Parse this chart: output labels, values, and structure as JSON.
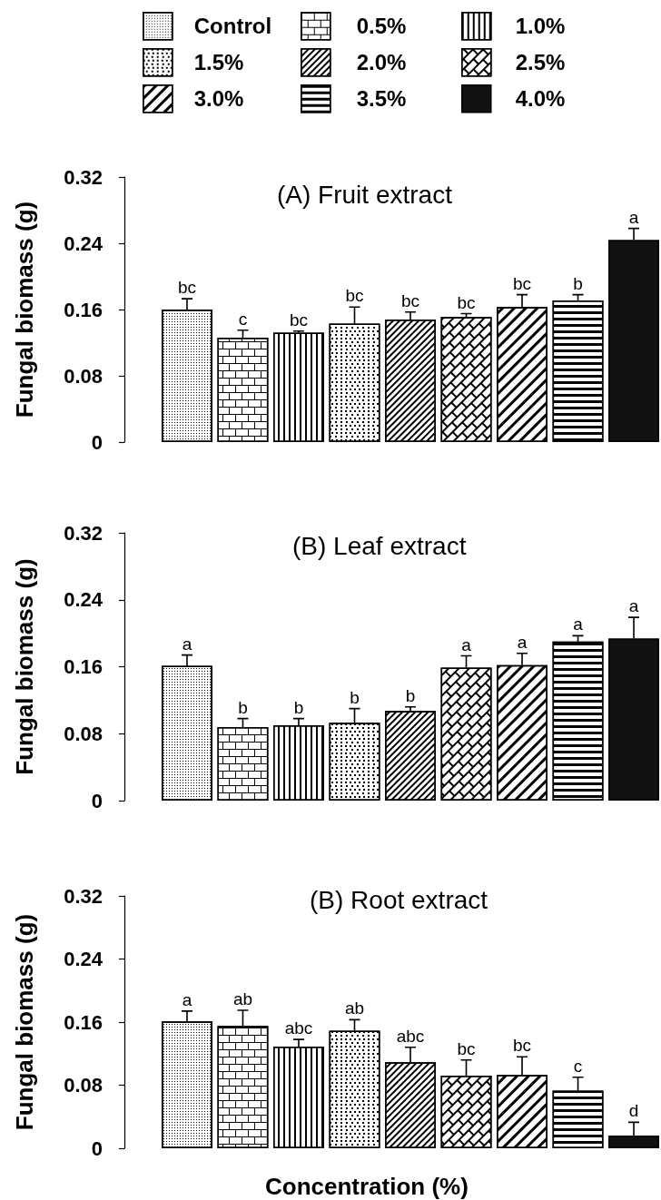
{
  "chart_data": [
    {
      "type": "bar",
      "title": "(A) Fruit extract",
      "ylabel": "Fungal biomass (g)",
      "categories": [
        null
      ],
      "legend": "top",
      "ylim": [
        0,
        0.32
      ],
      "yticks": [
        0,
        0.08,
        0.16,
        0.24,
        0.32
      ],
      "series": [
        {
          "name": "Control",
          "color": "#ffffff",
          "values": [
            0.16
          ],
          "errors": [
            0.013
          ],
          "value_labels": [
            "bc"
          ]
        },
        {
          "name": "0.5%",
          "color": "#ffffff",
          "values": [
            0.126
          ],
          "errors": [
            0.009
          ],
          "value_labels": [
            "c"
          ]
        },
        {
          "name": "1.0%",
          "color": "#ffffff",
          "values": [
            0.132
          ],
          "errors": [
            0.002
          ],
          "value_labels": [
            "bc"
          ]
        },
        {
          "name": "1.5%",
          "color": "#ffffff",
          "values": [
            0.143
          ],
          "errors": [
            0.02
          ],
          "value_labels": [
            "bc"
          ]
        },
        {
          "name": "2.0%",
          "color": "#ffffff",
          "values": [
            0.148
          ],
          "errors": [
            0.009
          ],
          "value_labels": [
            "bc"
          ]
        },
        {
          "name": "2.5%",
          "color": "#ffffff",
          "values": [
            0.151
          ],
          "errors": [
            0.004
          ],
          "value_labels": [
            "bc"
          ]
        },
        {
          "name": "3.0%",
          "color": "#ffffff",
          "values": [
            0.163
          ],
          "errors": [
            0.015
          ],
          "value_labels": [
            "bc"
          ]
        },
        {
          "name": "3.5%",
          "color": "#ffffff",
          "values": [
            0.171
          ],
          "errors": [
            0.007
          ],
          "value_labels": [
            "b"
          ]
        },
        {
          "name": "4.0%",
          "color": "#111111",
          "values": [
            0.244
          ],
          "errors": [
            0.014
          ],
          "value_labels": [
            "a"
          ]
        }
      ]
    },
    {
      "type": "bar",
      "title": "(B) Leaf extract",
      "ylabel": "Fungal biomass (g)",
      "categories": [
        null
      ],
      "ylim": [
        0,
        0.32
      ],
      "yticks": [
        0,
        0.08,
        0.16,
        0.24,
        0.32
      ],
      "series": [
        {
          "color": "#ffffff",
          "values": [
            0.161
          ],
          "errors": [
            0.013
          ],
          "value_labels": [
            "a"
          ]
        },
        {
          "color": "#ffffff",
          "values": [
            0.088
          ],
          "errors": [
            0.01
          ],
          "value_labels": [
            "b"
          ]
        },
        {
          "color": "#ffffff",
          "values": [
            0.09
          ],
          "errors": [
            0.008
          ],
          "value_labels": [
            "b"
          ]
        },
        {
          "color": "#ffffff",
          "values": [
            0.093
          ],
          "errors": [
            0.017
          ],
          "value_labels": [
            "b"
          ]
        },
        {
          "color": "#ffffff",
          "values": [
            0.107
          ],
          "errors": [
            0.005
          ],
          "value_labels": [
            "b"
          ]
        },
        {
          "color": "#ffffff",
          "values": [
            0.159
          ],
          "errors": [
            0.014
          ],
          "value_labels": [
            "a"
          ]
        },
        {
          "color": "#ffffff",
          "values": [
            0.162
          ],
          "errors": [
            0.014
          ],
          "value_labels": [
            "a"
          ]
        },
        {
          "color": "#ffffff",
          "values": [
            0.19
          ],
          "errors": [
            0.007
          ],
          "value_labels": [
            "a"
          ]
        },
        {
          "color": "#111111",
          "values": [
            0.194
          ],
          "errors": [
            0.025
          ],
          "value_labels": [
            "a"
          ]
        }
      ]
    },
    {
      "type": "bar",
      "title": "(B) Root extract",
      "ylabel": "Fungal biomass (g)",
      "xlabel": "Concentration (%)",
      "categories": [
        null
      ],
      "ylim": [
        0,
        0.32
      ],
      "yticks": [
        0,
        0.08,
        0.16,
        0.24,
        0.32
      ],
      "series": [
        {
          "color": "#ffffff",
          "values": [
            0.161
          ],
          "errors": [
            0.013
          ],
          "value_labels": [
            "a"
          ]
        },
        {
          "color": "#ffffff",
          "values": [
            0.155
          ],
          "errors": [
            0.02
          ],
          "value_labels": [
            "ab"
          ]
        },
        {
          "color": "#ffffff",
          "values": [
            0.129
          ],
          "errors": [
            0.009
          ],
          "value_labels": [
            "abc"
          ]
        },
        {
          "color": "#ffffff",
          "values": [
            0.149
          ],
          "errors": [
            0.014
          ],
          "value_labels": [
            "ab"
          ]
        },
        {
          "color": "#ffffff",
          "values": [
            0.109
          ],
          "errors": [
            0.019
          ],
          "value_labels": [
            "abc"
          ]
        },
        {
          "color": "#ffffff",
          "values": [
            0.092
          ],
          "errors": [
            0.02
          ],
          "value_labels": [
            "bc"
          ]
        },
        {
          "color": "#ffffff",
          "values": [
            0.093
          ],
          "errors": [
            0.023
          ],
          "value_labels": [
            "bc"
          ]
        },
        {
          "color": "#ffffff",
          "values": [
            0.073
          ],
          "errors": [
            0.017
          ],
          "value_labels": [
            "c"
          ]
        },
        {
          "color": "#111111",
          "values": [
            0.016
          ],
          "errors": [
            0.017
          ],
          "value_labels": [
            "d"
          ]
        }
      ]
    }
  ]
}
